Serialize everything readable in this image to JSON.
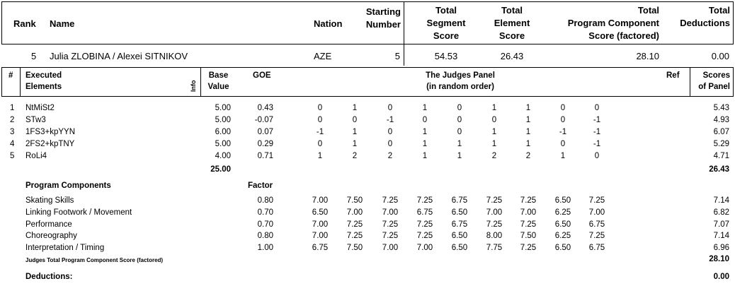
{
  "summary_headers": {
    "rank": "Rank",
    "name": "Name",
    "nation": "Nation",
    "starting_number": [
      "Starting",
      "Number"
    ],
    "tss": [
      "Total",
      "Segment",
      "Score"
    ],
    "tes": [
      "Total",
      "Element",
      "Score"
    ],
    "pcs": [
      "Total",
      "Program Component",
      "Score (factored)"
    ],
    "ded": [
      "Total",
      "Deductions"
    ]
  },
  "summary": {
    "rank": "5",
    "name": "Julia ZLOBINA / Alexei SITNIKOV",
    "nation": "AZE",
    "starting_number": "5",
    "tss": "54.53",
    "tes": "26.43",
    "pcs": "28.10",
    "ded": "0.00"
  },
  "detail_headers": {
    "num": "#",
    "elements": [
      "Executed",
      "Elements"
    ],
    "info": "Info",
    "base": [
      "Base",
      "Value"
    ],
    "goe": "GOE",
    "panel": [
      "The Judges Panel",
      "(in random order)"
    ],
    "ref": "Ref",
    "scores": [
      "Scores",
      "of Panel"
    ]
  },
  "elements": [
    {
      "num": "1",
      "name": "NtMiSt2",
      "base": "5.00",
      "goe": "0.43",
      "judges": [
        "0",
        "1",
        "0",
        "1",
        "0",
        "1",
        "1",
        "0",
        "0"
      ],
      "score": "5.43"
    },
    {
      "num": "2",
      "name": "STw3",
      "base": "5.00",
      "goe": "-0.07",
      "judges": [
        "0",
        "0",
        "-1",
        "0",
        "0",
        "0",
        "1",
        "0",
        "-1"
      ],
      "score": "4.93"
    },
    {
      "num": "3",
      "name": "1FS3+kpYYN",
      "base": "6.00",
      "goe": "0.07",
      "judges": [
        "-1",
        "1",
        "0",
        "1",
        "0",
        "1",
        "1",
        "-1",
        "-1"
      ],
      "score": "6.07"
    },
    {
      "num": "4",
      "name": "2FS2+kpTNY",
      "base": "5.00",
      "goe": "0.29",
      "judges": [
        "0",
        "1",
        "0",
        "1",
        "1",
        "1",
        "1",
        "0",
        "-1"
      ],
      "score": "5.29"
    },
    {
      "num": "5",
      "name": "RoLi4",
      "base": "4.00",
      "goe": "0.71",
      "judges": [
        "1",
        "2",
        "2",
        "1",
        "1",
        "2",
        "2",
        "1",
        "0"
      ],
      "score": "4.71"
    }
  ],
  "elements_total": {
    "base": "25.00",
    "score": "26.43"
  },
  "program_components_label": "Program Components",
  "factor_label": "Factor",
  "components": [
    {
      "name": "Skating Skills",
      "factor": "0.80",
      "judges": [
        "7.00",
        "7.50",
        "7.25",
        "7.25",
        "6.75",
        "7.25",
        "7.25",
        "6.50",
        "7.25"
      ],
      "score": "7.14"
    },
    {
      "name": "Linking Footwork / Movement",
      "factor": "0.70",
      "judges": [
        "6.50",
        "7.00",
        "7.00",
        "6.75",
        "6.50",
        "7.00",
        "7.00",
        "6.25",
        "7.00"
      ],
      "score": "6.82"
    },
    {
      "name": "Performance",
      "factor": "0.70",
      "judges": [
        "7.00",
        "7.25",
        "7.25",
        "7.25",
        "6.75",
        "7.25",
        "7.25",
        "6.50",
        "6.75"
      ],
      "score": "7.07"
    },
    {
      "name": "Choreography",
      "factor": "0.80",
      "judges": [
        "7.00",
        "7.25",
        "7.25",
        "7.25",
        "6.50",
        "8.00",
        "7.50",
        "6.25",
        "7.25"
      ],
      "score": "7.14"
    },
    {
      "name": "Interpretation / Timing",
      "factor": "1.00",
      "judges": [
        "6.75",
        "7.50",
        "7.00",
        "7.00",
        "6.50",
        "7.75",
        "7.25",
        "6.50",
        "6.75"
      ],
      "score": "6.96"
    }
  ],
  "pcs_total_label": "Judges Total Program Component Score (factored)",
  "pcs_total": "28.10",
  "deductions_label": "Deductions:",
  "deductions": "0.00"
}
